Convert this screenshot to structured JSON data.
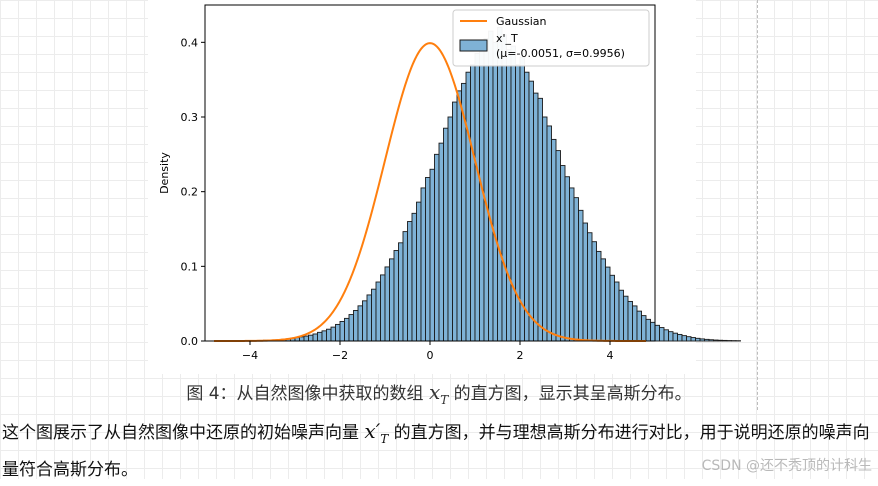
{
  "chart_data": {
    "type": "bar",
    "ylabel": "Density",
    "xlabel": "",
    "xlim": [
      -5.0,
      5.0
    ],
    "ylim": [
      0.0,
      0.45
    ],
    "x_ticks": [
      -4,
      -2,
      0,
      2,
      4
    ],
    "x_tick_labels": [
      "−4",
      "−2",
      "0",
      "2",
      "4"
    ],
    "y_ticks": [
      0.0,
      0.1,
      0.2,
      0.3,
      0.4
    ],
    "y_tick_labels": [
      "0.0",
      "0.1",
      "0.2",
      "0.3",
      "0.4"
    ],
    "legend_position": "top-right",
    "series": [
      {
        "name": "Gaussian",
        "kind": "line",
        "color": "#ff7f0e",
        "mu": 0.0,
        "sigma": 1.0
      },
      {
        "name": "x'_T\n(μ=-0.0051, σ=0.9956)",
        "legend_line1": "x'_T",
        "legend_line2": "(μ=-0.0051, σ=0.9956)",
        "kind": "histogram",
        "color": "#7fb2d6",
        "edge_color": "#1a1a1a",
        "bin_start": -3.9,
        "bin_width": 0.1,
        "values": [
          0.0005,
          0.0008,
          0.001,
          0.0012,
          0.0015,
          0.0018,
          0.0022,
          0.0028,
          0.0035,
          0.0045,
          0.0055,
          0.0066,
          0.0078,
          0.0094,
          0.0116,
          0.0136,
          0.0158,
          0.0186,
          0.0222,
          0.0262,
          0.0303,
          0.0354,
          0.0409,
          0.0471,
          0.0538,
          0.0617,
          0.0694,
          0.079,
          0.0885,
          0.0992,
          0.11,
          0.1212,
          0.1315,
          0.1465,
          0.16,
          0.171,
          0.186,
          0.205,
          0.219,
          0.23,
          0.25,
          0.265,
          0.285,
          0.3,
          0.32,
          0.335,
          0.345,
          0.36,
          0.37,
          0.385,
          0.395,
          0.405,
          0.415,
          0.4,
          0.42,
          0.41,
          0.39,
          0.395,
          0.37,
          0.38,
          0.36,
          0.348,
          0.332,
          0.325,
          0.3,
          0.288,
          0.27,
          0.255,
          0.235,
          0.22,
          0.205,
          0.192,
          0.175,
          0.158,
          0.145,
          0.133,
          0.12,
          0.11,
          0.099,
          0.088,
          0.079,
          0.068,
          0.06,
          0.053,
          0.047,
          0.04,
          0.034,
          0.029,
          0.025,
          0.021,
          0.018,
          0.015,
          0.0125,
          0.0105,
          0.0088,
          0.0072,
          0.0058,
          0.0046,
          0.0036,
          0.0028,
          0.0022,
          0.0017,
          0.0013,
          0.001,
          0.0008,
          0.0006,
          0.0005,
          0.0004
        ]
      }
    ]
  },
  "caption": {
    "prefix": "图 4：从自然图像中获取的数组 ",
    "math_base": "x",
    "math_sub": "T",
    "suffix": " 的直方图，显示其呈高斯分布。"
  },
  "paragraph": {
    "part1": "这个图展示了从自然图像中还原的初始噪声向量 ",
    "math_base": "x",
    "math_prime": "′",
    "math_sub": "T",
    "part2": " 的直方图，并与理想高斯分布进行对比，用于说明还原的噪声向量符合高斯分布。"
  },
  "watermark": "CSDN @还不秃顶的计科生"
}
